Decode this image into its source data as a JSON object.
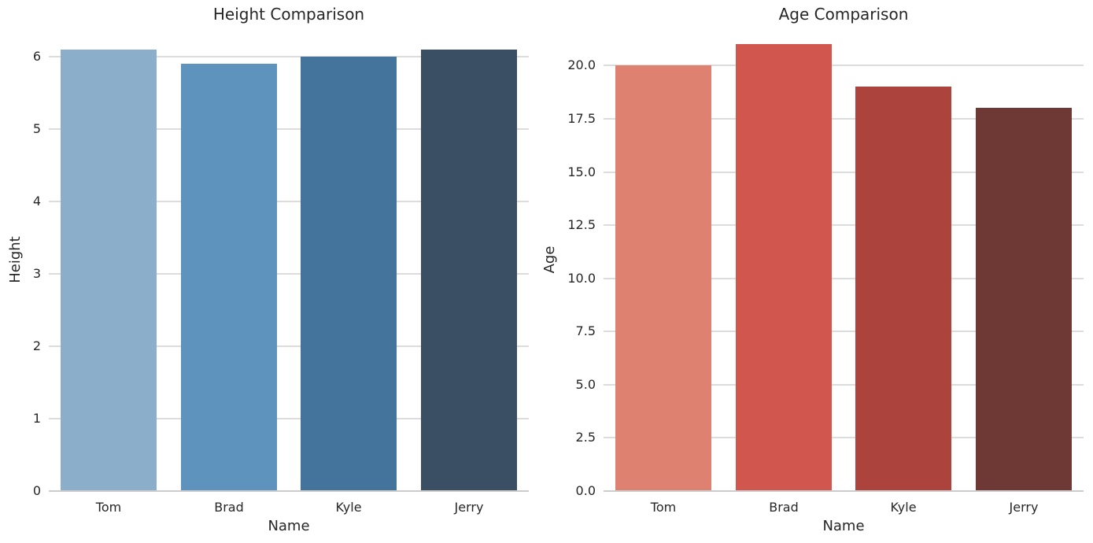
{
  "figure": {
    "background_color": "#ffffff",
    "text_color": "#262626",
    "grid_color": "#dcdcdc",
    "axis_line_color": "#cccccc"
  },
  "chart_data": [
    {
      "type": "bar",
      "title": "Height Comparison",
      "xlabel": "Name",
      "ylabel": "Height",
      "categories": [
        "Tom",
        "Brad",
        "Kyle",
        "Jerry"
      ],
      "values": [
        6.1,
        5.9,
        6.0,
        6.1
      ],
      "bar_colors": [
        "#8bafcb",
        "#5e93bd",
        "#44749c",
        "#3a4f63"
      ],
      "ylim": [
        0,
        6.4
      ],
      "yticks": [
        0,
        1,
        2,
        3,
        4,
        5,
        6
      ],
      "ytick_labels": [
        "0",
        "1",
        "2",
        "3",
        "4",
        "5",
        "6"
      ],
      "grid": true,
      "legend": null
    },
    {
      "type": "bar",
      "title": "Age Comparison",
      "xlabel": "Name",
      "ylabel": "Age",
      "categories": [
        "Tom",
        "Brad",
        "Kyle",
        "Jerry"
      ],
      "values": [
        20,
        21,
        19,
        18
      ],
      "bar_colors": [
        "#de8170",
        "#d1574e",
        "#ac433c",
        "#6e3934"
      ],
      "ylim": [
        0,
        22.05
      ],
      "yticks": [
        0,
        2.5,
        5,
        7.5,
        10,
        12.5,
        15,
        17.5,
        20
      ],
      "ytick_labels": [
        "0.0",
        "2.5",
        "5.0",
        "7.5",
        "10.0",
        "12.5",
        "15.0",
        "17.5",
        "20.0"
      ],
      "grid": true,
      "legend": null
    }
  ]
}
